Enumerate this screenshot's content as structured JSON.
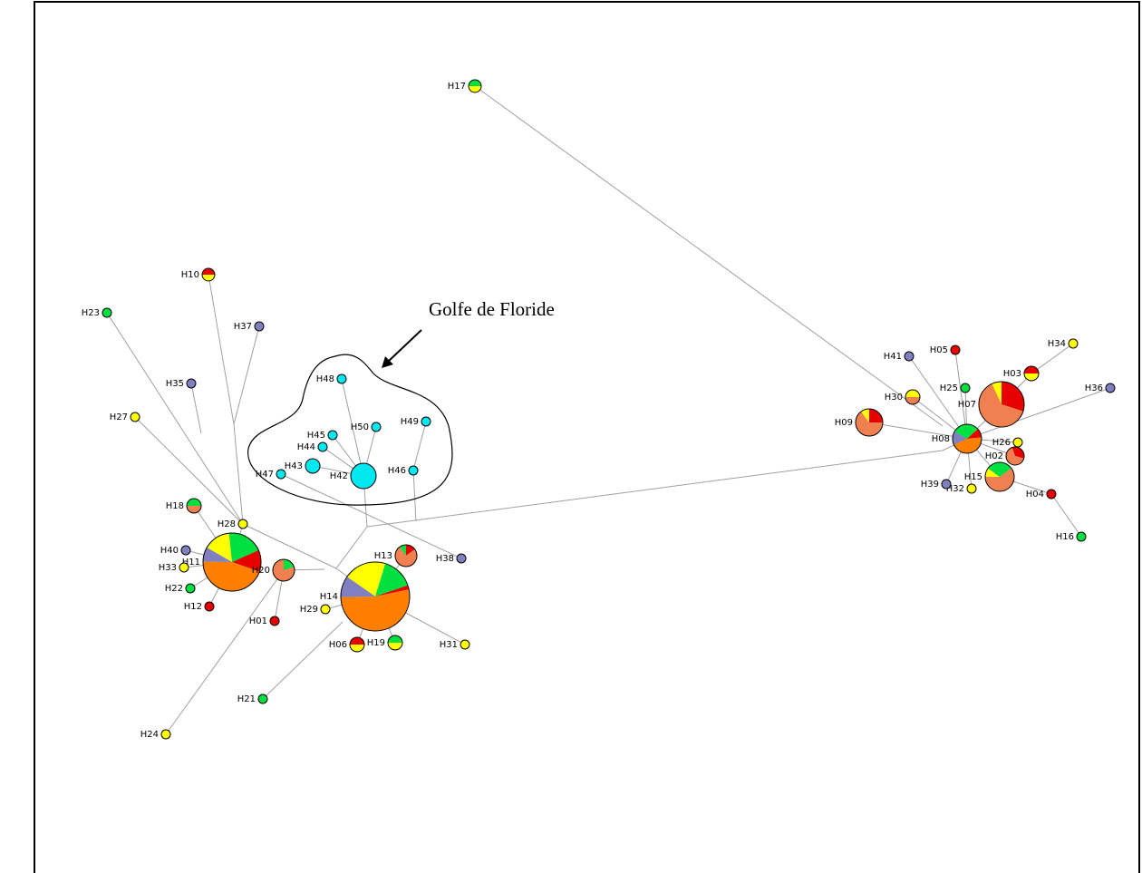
{
  "annotation": "Golfe de Floride",
  "nodes": [
    {
      "label": "H01"
    },
    {
      "label": "H02"
    },
    {
      "label": "H03"
    },
    {
      "label": "H04"
    },
    {
      "label": "H05"
    },
    {
      "label": "H06"
    },
    {
      "label": "H07"
    },
    {
      "label": "H08"
    },
    {
      "label": "H09"
    },
    {
      "label": "H10"
    },
    {
      "label": "H11"
    },
    {
      "label": "H12"
    },
    {
      "label": "H13"
    },
    {
      "label": "H14"
    },
    {
      "label": "H15"
    },
    {
      "label": "H16"
    },
    {
      "label": "H17"
    },
    {
      "label": "H18"
    },
    {
      "label": "H19"
    },
    {
      "label": "H20"
    },
    {
      "label": "H21"
    },
    {
      "label": "H22"
    },
    {
      "label": "H23"
    },
    {
      "label": "H24"
    },
    {
      "label": "H25"
    },
    {
      "label": "H26"
    },
    {
      "label": "H27"
    },
    {
      "label": "H28"
    },
    {
      "label": "H29"
    },
    {
      "label": "H30"
    },
    {
      "label": "H31"
    },
    {
      "label": "H32"
    },
    {
      "label": "H33"
    },
    {
      "label": "H34"
    },
    {
      "label": "H35"
    },
    {
      "label": "H36"
    },
    {
      "label": "H37"
    },
    {
      "label": "H38"
    },
    {
      "label": "H39"
    },
    {
      "label": "H40"
    },
    {
      "label": "H41"
    },
    {
      "label": "H42"
    },
    {
      "label": "H43"
    },
    {
      "label": "H44"
    },
    {
      "label": "H45"
    },
    {
      "label": "H46"
    },
    {
      "label": "H47"
    },
    {
      "label": "H48"
    },
    {
      "label": "H49"
    },
    {
      "label": "H50"
    }
  ]
}
